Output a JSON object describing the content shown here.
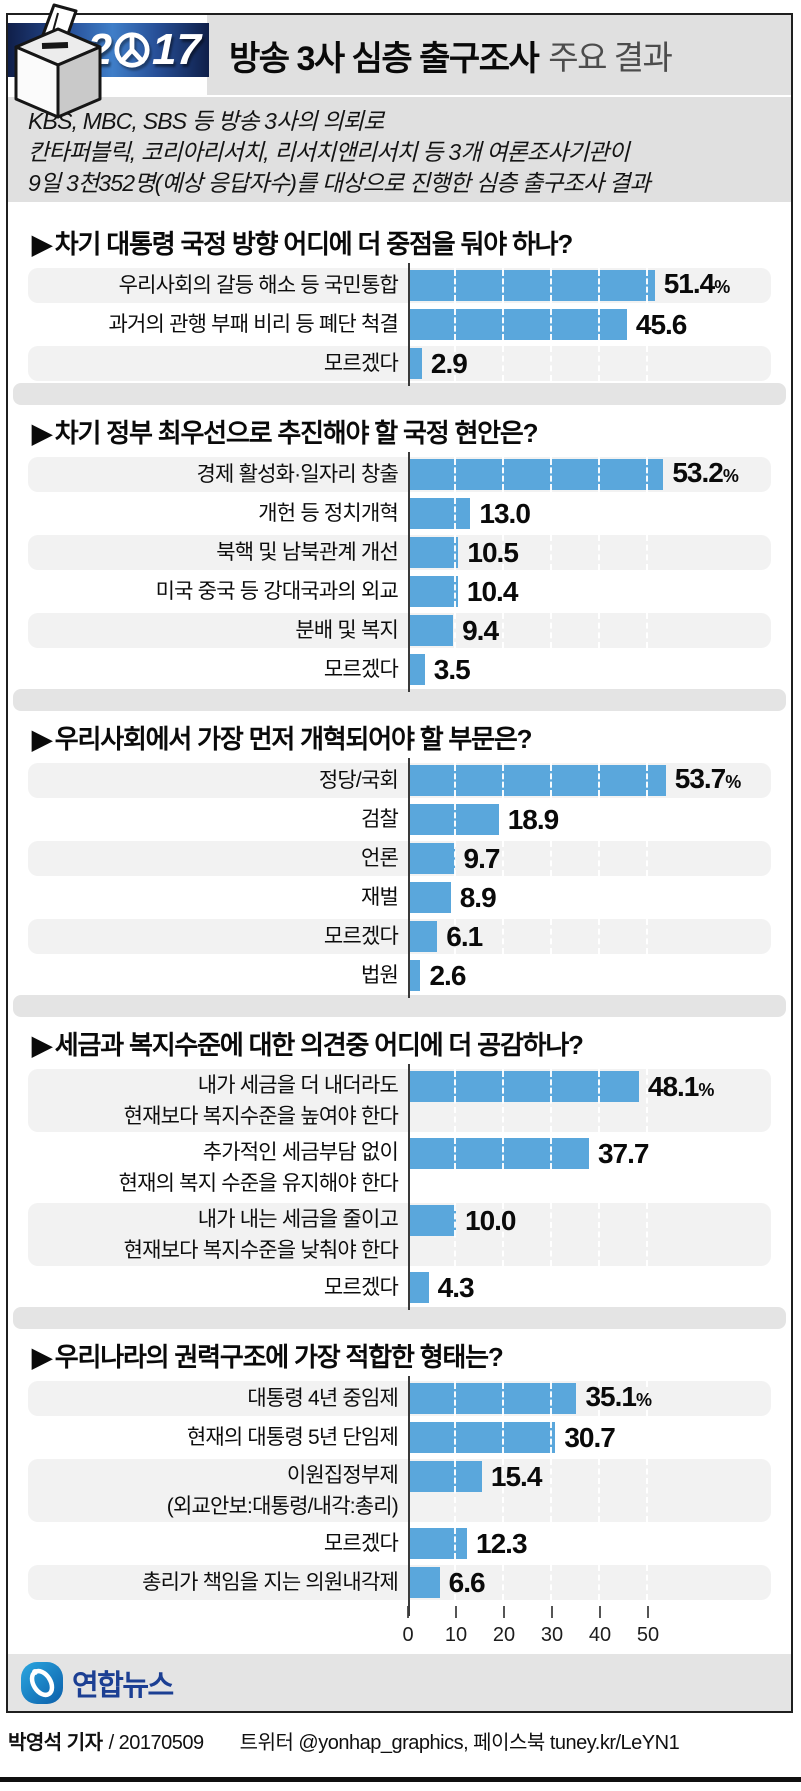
{
  "ui": {
    "marker": "▶"
  },
  "header": {
    "year_prefix": "2",
    "year_suffix": "17",
    "title_strong": "방송 3사 심층 출구조사",
    "title_light": "주요 결과",
    "subtitle_lines": [
      "KBS, MBC, SBS 등 방송 3사의 의뢰로",
      "칸타퍼블릭, 코리아리서치, 리서치앤리서치 등 3개 여론조사기관이",
      "9일 3천352명(예상 응답자수)를 대상으로 진행한 심층 출구조사 결과"
    ]
  },
  "chart_data": [
    {
      "type": "bar",
      "orientation": "horizontal",
      "title": "차기 대통령 국정 방향 어디에 더 중점을 둬야 하나?",
      "categories": [
        [
          "우리사회의 갈등 해소 등 국민통합"
        ],
        [
          "과거의 관행 부패 비리 등 폐단 척결"
        ],
        [
          "모르겠다"
        ]
      ],
      "values": [
        51.4,
        45.6,
        2.9
      ],
      "value_labels": [
        "51.4",
        "45.6",
        "2.9"
      ],
      "unit": "%",
      "xlim": [
        0,
        55
      ],
      "grid_interval": 10,
      "bar_color_first": "#0c78c6",
      "bar_color_rest": "#5aa7dc"
    },
    {
      "type": "bar",
      "orientation": "horizontal",
      "title": "차기 정부 최우선으로 추진해야 할 국정 현안은?",
      "categories": [
        [
          "경제 활성화·일자리 창출"
        ],
        [
          "개헌 등 정치개혁"
        ],
        [
          "북핵 및 남북관계 개선"
        ],
        [
          "미국 중국 등 강대국과의 외교"
        ],
        [
          "분배 및 복지"
        ],
        [
          "모르겠다"
        ]
      ],
      "values": [
        53.2,
        13.0,
        10.5,
        10.4,
        9.4,
        3.5
      ],
      "value_labels": [
        "53.2",
        "13.0",
        "10.5",
        "10.4",
        "9.4",
        "3.5"
      ],
      "unit": "%",
      "xlim": [
        0,
        55
      ],
      "grid_interval": 10,
      "bar_color_first": "#0c78c6",
      "bar_color_rest": "#5aa7dc"
    },
    {
      "type": "bar",
      "orientation": "horizontal",
      "title": "우리사회에서 가장 먼저 개혁되어야 할 부문은?",
      "categories": [
        [
          "정당/국회"
        ],
        [
          "검찰"
        ],
        [
          "언론"
        ],
        [
          "재벌"
        ],
        [
          "모르겠다"
        ],
        [
          "법원"
        ]
      ],
      "values": [
        53.7,
        18.9,
        9.7,
        8.9,
        6.1,
        2.6
      ],
      "value_labels": [
        "53.7",
        "18.9",
        "9.7",
        "8.9",
        "6.1",
        "2.6"
      ],
      "unit": "%",
      "xlim": [
        0,
        55
      ],
      "grid_interval": 10,
      "bar_color_first": "#0c78c6",
      "bar_color_rest": "#5aa7dc"
    },
    {
      "type": "bar",
      "orientation": "horizontal",
      "title": "세금과 복지수준에 대한 의견중 어디에 더 공감하나?",
      "categories": [
        [
          "내가 세금을 더 내더라도",
          "현재보다 복지수준을 높여야 한다"
        ],
        [
          "추가적인 세금부담 없이",
          "현재의 복지 수준을 유지해야 한다"
        ],
        [
          "내가 내는 세금을 줄이고",
          "현재보다 복지수준을 낮춰야 한다"
        ],
        [
          "모르겠다"
        ]
      ],
      "values": [
        48.1,
        37.7,
        10.0,
        4.3
      ],
      "value_labels": [
        "48.1",
        "37.7",
        "10.0",
        "4.3"
      ],
      "unit": "%",
      "xlim": [
        0,
        55
      ],
      "grid_interval": 10,
      "bar_color_first": "#0c78c6",
      "bar_color_rest": "#5aa7dc"
    },
    {
      "type": "bar",
      "orientation": "horizontal",
      "title": "우리나라의 권력구조에 가장 적합한 형태는?",
      "categories": [
        [
          "대통령 4년 중임제"
        ],
        [
          "현재의 대통령 5년 단임제"
        ],
        [
          "이원집정부제",
          "(외교안보:대통령/내각:총리)"
        ],
        [
          "모르겠다"
        ],
        [
          "총리가 책임을 지는 의원내각제"
        ]
      ],
      "values": [
        35.1,
        30.7,
        15.4,
        12.3,
        6.6
      ],
      "value_labels": [
        "35.1",
        "30.7",
        "15.4",
        "12.3",
        "6.6"
      ],
      "unit": "%",
      "xlim": [
        0,
        55
      ],
      "grid_interval": 10,
      "x_ticks": [
        "0",
        "10",
        "20",
        "30",
        "40",
        "50"
      ],
      "bar_color_first": "#0c78c6",
      "bar_color_rest": "#5aa7dc"
    }
  ],
  "footer": {
    "logo_text": "연합뉴스",
    "reporter": "박영석 기자",
    "date": "/ 20170509",
    "social": "트위터 @yonhap_graphics, 페이스북 tuney.kr/LeYN1"
  }
}
